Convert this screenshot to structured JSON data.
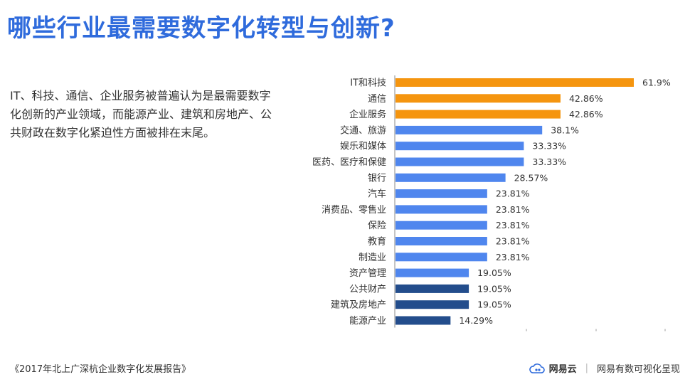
{
  "title": "哪些行业最需要数字化转型与创新?",
  "description": "IT、科技、通信、企业服务被普遍认为是最需要数字化创新的产业领域，而能源产业、建筑和房地产、公共财政在数字化紧迫性方面被排在末尾。",
  "footer": {
    "source": "《2017年北上广深杭企业数字化发展报告》",
    "brand": "网易云",
    "tagline": "网易有数可视化呈现",
    "brand_icon": "cloud-icon"
  },
  "colors": {
    "title": "#2f6bdc",
    "orange": "#f5950f",
    "blue": "#4f86ee",
    "navy": "#234d8c"
  },
  "chart_data": {
    "type": "bar",
    "orientation": "horizontal",
    "categories": [
      "IT和科技",
      "通信",
      "企业服务",
      "交通、旅游",
      "娱乐和媒体",
      "医药、医疗和保健",
      "银行",
      "汽车",
      "消费品、零售业",
      "保险",
      "教育",
      "制造业",
      "资产管理",
      "公共财产",
      "建筑及房地产",
      "能源产业"
    ],
    "values": [
      61.9,
      42.86,
      42.86,
      38.1,
      33.33,
      33.33,
      28.57,
      23.81,
      23.81,
      23.81,
      23.81,
      23.81,
      19.05,
      19.05,
      19.05,
      14.29
    ],
    "value_labels": [
      "61.9%",
      "42.86%",
      "42.86%",
      "38.1%",
      "33.33%",
      "33.33%",
      "28.57%",
      "23.81%",
      "23.81%",
      "23.81%",
      "23.81%",
      "23.81%",
      "19.05%",
      "19.05%",
      "19.05%",
      "14.29%"
    ],
    "bar_colors": [
      "#f5950f",
      "#f5950f",
      "#f5950f",
      "#4f86ee",
      "#4f86ee",
      "#4f86ee",
      "#4f86ee",
      "#4f86ee",
      "#4f86ee",
      "#4f86ee",
      "#4f86ee",
      "#4f86ee",
      "#4f86ee",
      "#234d8c",
      "#234d8c",
      "#234d8c"
    ],
    "xlim": [
      0,
      70
    ],
    "grid": false,
    "legend": "none"
  }
}
